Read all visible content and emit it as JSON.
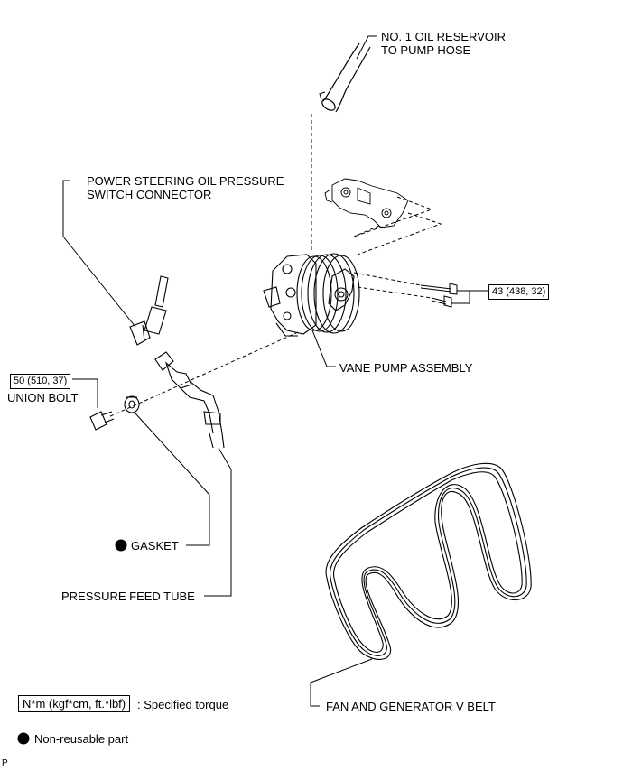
{
  "labels": {
    "reservoir_hose_line1": "NO. 1 OIL RESERVOIR",
    "reservoir_hose_line2": "TO PUMP HOSE",
    "switch_connector_line1": "POWER STEERING OIL PRESSURE",
    "switch_connector_line2": "SWITCH CONNECTOR",
    "pump_torque": "43 (438, 32)",
    "vane_pump": "VANE PUMP ASSEMBLY",
    "union_bolt_torque": "50 (510, 37)",
    "union_bolt": "UNION BOLT",
    "gasket": "GASKET",
    "pressure_feed_tube": "PRESSURE FEED TUBE",
    "v_belt": "FAN AND GENERATOR V BELT"
  },
  "legend": {
    "torque_unit": "N*m (kgf*cm, ft.*lbf)",
    "torque_desc": ": Specified torque",
    "nonreusable_desc": "Non-reusable part"
  },
  "corner_mark": "P",
  "colors": {
    "ink": "#000000",
    "paper": "#ffffff"
  }
}
